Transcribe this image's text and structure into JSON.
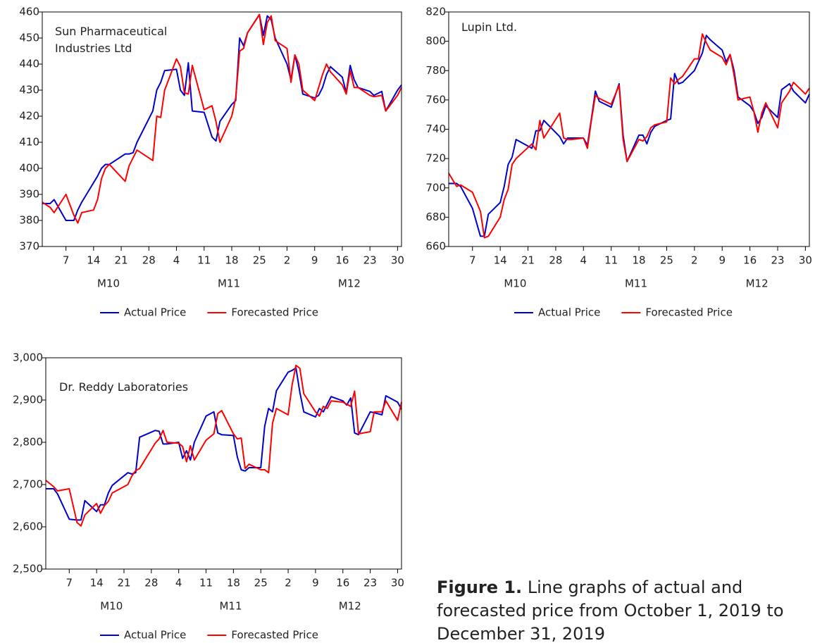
{
  "chart_data": [
    {
      "type": "line",
      "title": "Sun Pharmaceutical Industries Ltd",
      "x": [
        1,
        3,
        4,
        7,
        9,
        10,
        11,
        14,
        15,
        16,
        17,
        18,
        22,
        23,
        24,
        25,
        29,
        30,
        31,
        32,
        35,
        36,
        37,
        38,
        39,
        42,
        44,
        45,
        46,
        49,
        50,
        51,
        52,
        53,
        56,
        57,
        58,
        59,
        60,
        63,
        64,
        65,
        66,
        67,
        70,
        71,
        72,
        73,
        74,
        77,
        78,
        79,
        80,
        81,
        84,
        85,
        87,
        88,
        91,
        92
      ],
      "xlim": [
        1,
        92
      ],
      "xticks": [
        {
          "value": 7,
          "label": "7"
        },
        {
          "value": 14,
          "label": "14"
        },
        {
          "value": 21,
          "label": "21"
        },
        {
          "value": 28,
          "label": "28"
        },
        {
          "value": 35,
          "label": "4"
        },
        {
          "value": 42,
          "label": "11"
        },
        {
          "value": 49,
          "label": "18"
        },
        {
          "value": 56,
          "label": "25"
        },
        {
          "value": 63,
          "label": "2"
        },
        {
          "value": 70,
          "label": "9"
        },
        {
          "value": 77,
          "label": "16"
        },
        {
          "value": 84,
          "label": "23"
        },
        {
          "value": 91,
          "label": "30"
        }
      ],
      "x_groups": [
        {
          "label": "M10",
          "range": [
            1,
            31
          ]
        },
        {
          "label": "M11",
          "range": [
            32,
            61
          ]
        },
        {
          "label": "M12",
          "range": [
            62,
            92
          ]
        }
      ],
      "ylim": [
        370,
        460
      ],
      "yticks": [
        370,
        380,
        390,
        400,
        410,
        420,
        430,
        440,
        450,
        460
      ],
      "series": [
        {
          "name": "Actual Price",
          "color": "#0000cc",
          "values": [
            386.5,
            386.5,
            388,
            380,
            380,
            384,
            387,
            394.5,
            397,
            400,
            401.5,
            401.5,
            405.5,
            405.5,
            406,
            410,
            422,
            430,
            433,
            437.5,
            438,
            430,
            428,
            440.5,
            422,
            421.5,
            412,
            410.5,
            418,
            424.5,
            426,
            450,
            447,
            452,
            459,
            451,
            458.5,
            457,
            450,
            440,
            434,
            443.5,
            437,
            428.5,
            427,
            428,
            431,
            436,
            439,
            435,
            429,
            439.5,
            434,
            431,
            429.5,
            428,
            429.5,
            422,
            430,
            432
          ]
        },
        {
          "name": "Forecasted Price",
          "color": "#ff0000",
          "values": [
            387,
            385,
            383,
            390,
            382,
            379,
            383,
            384,
            388,
            396,
            400,
            401.5,
            395,
            401,
            404,
            407,
            403,
            420,
            419.5,
            430,
            442,
            439,
            429,
            428.5,
            439.5,
            422.5,
            424,
            418,
            410,
            420,
            427,
            445,
            446,
            452,
            459,
            447.5,
            456,
            458.5,
            449,
            446,
            433,
            443.5,
            440,
            430,
            426,
            431,
            436,
            440,
            437,
            432,
            428.5,
            437.5,
            431,
            431,
            428,
            427.5,
            428,
            422,
            428,
            431
          ]
        }
      ]
    },
    {
      "type": "line",
      "title": "Lupin Ltd.",
      "x": [
        1,
        3,
        4,
        7,
        9,
        10,
        11,
        14,
        15,
        16,
        17,
        18,
        22,
        23,
        24,
        25,
        29,
        30,
        31,
        32,
        35,
        36,
        37,
        38,
        39,
        42,
        44,
        45,
        46,
        49,
        50,
        51,
        52,
        53,
        56,
        57,
        58,
        59,
        60,
        63,
        64,
        65,
        66,
        67,
        70,
        71,
        72,
        73,
        74,
        77,
        78,
        79,
        80,
        81,
        84,
        85,
        87,
        88,
        91,
        92
      ],
      "xlim": [
        1,
        92
      ],
      "xticks": [
        {
          "value": 7,
          "label": "7"
        },
        {
          "value": 14,
          "label": "14"
        },
        {
          "value": 21,
          "label": "21"
        },
        {
          "value": 28,
          "label": "28"
        },
        {
          "value": 35,
          "label": "4"
        },
        {
          "value": 42,
          "label": "11"
        },
        {
          "value": 49,
          "label": "18"
        },
        {
          "value": 56,
          "label": "25"
        },
        {
          "value": 63,
          "label": "2"
        },
        {
          "value": 70,
          "label": "9"
        },
        {
          "value": 77,
          "label": "16"
        },
        {
          "value": 84,
          "label": "23"
        },
        {
          "value": 91,
          "label": "30"
        }
      ],
      "x_groups": [
        {
          "label": "M10",
          "range": [
            1,
            31
          ]
        },
        {
          "label": "M11",
          "range": [
            32,
            61
          ]
        },
        {
          "label": "M12",
          "range": [
            62,
            92
          ]
        }
      ],
      "ylim": [
        660,
        820
      ],
      "yticks": [
        660,
        680,
        700,
        720,
        740,
        760,
        780,
        800,
        820
      ],
      "series": [
        {
          "name": "Actual Price",
          "color": "#0000cc",
          "values": [
            703,
            703,
            701,
            686,
            667,
            667,
            682,
            690,
            701,
            716,
            721,
            733,
            727,
            739,
            739,
            746,
            735,
            730,
            734,
            734,
            734,
            729,
            747,
            766,
            759,
            755,
            771,
            736,
            718,
            736,
            736,
            730,
            738,
            742,
            746,
            747,
            778,
            771,
            772,
            780,
            786,
            792,
            804,
            801,
            794,
            786,
            791,
            780,
            762,
            756,
            752,
            744,
            748,
            756,
            748,
            767,
            771,
            766,
            758,
            764
          ]
        },
        {
          "name": "Forecasted Price",
          "color": "#ff0000",
          "values": [
            710,
            701,
            702,
            697,
            684,
            666,
            667,
            680,
            692,
            699,
            716,
            720,
            730,
            726,
            746,
            734,
            751,
            734,
            733,
            733,
            734,
            727,
            746,
            763,
            761,
            757,
            770,
            733,
            718,
            733,
            732,
            735,
            741,
            743,
            745,
            775,
            771,
            774,
            776,
            788,
            788,
            805,
            799,
            794,
            789,
            784,
            791,
            777,
            760,
            762,
            752,
            738,
            751,
            758,
            741,
            758,
            766,
            772,
            764,
            768
          ]
        }
      ]
    },
    {
      "type": "line",
      "title": "Dr. Reddy Laboratories",
      "x": [
        1,
        3,
        4,
        7,
        9,
        10,
        11,
        14,
        15,
        16,
        17,
        18,
        22,
        23,
        24,
        25,
        29,
        30,
        31,
        32,
        35,
        36,
        37,
        38,
        39,
        42,
        44,
        45,
        46,
        49,
        50,
        51,
        52,
        53,
        56,
        57,
        58,
        59,
        60,
        63,
        64,
        65,
        66,
        67,
        70,
        71,
        72,
        73,
        74,
        77,
        78,
        79,
        80,
        81,
        84,
        85,
        87,
        88,
        91,
        92
      ],
      "xlim": [
        1,
        92
      ],
      "xticks": [
        {
          "value": 7,
          "label": "7"
        },
        {
          "value": 14,
          "label": "14"
        },
        {
          "value": 21,
          "label": "21"
        },
        {
          "value": 28,
          "label": "28"
        },
        {
          "value": 35,
          "label": "4"
        },
        {
          "value": 42,
          "label": "11"
        },
        {
          "value": 49,
          "label": "18"
        },
        {
          "value": 56,
          "label": "25"
        },
        {
          "value": 63,
          "label": "2"
        },
        {
          "value": 70,
          "label": "9"
        },
        {
          "value": 77,
          "label": "16"
        },
        {
          "value": 84,
          "label": "23"
        },
        {
          "value": 91,
          "label": "30"
        }
      ],
      "x_groups": [
        {
          "label": "M10",
          "range": [
            1,
            31
          ]
        },
        {
          "label": "M11",
          "range": [
            32,
            61
          ]
        },
        {
          "label": "M12",
          "range": [
            62,
            92
          ]
        }
      ],
      "ylim": [
        2500,
        3000
      ],
      "yticks": [
        {
          "value": 2500,
          "label": "2,500"
        },
        {
          "value": 2600,
          "label": "2,600"
        },
        {
          "value": 2700,
          "label": "2,700"
        },
        {
          "value": 2800,
          "label": "2,800"
        },
        {
          "value": 2900,
          "label": "2,900"
        },
        {
          "value": 3000,
          "label": "3,000"
        }
      ],
      "series": [
        {
          "name": "Actual Price",
          "color": "#0000cc",
          "values": [
            2690,
            2690,
            2678,
            2618,
            2616,
            2616,
            2662,
            2636,
            2652,
            2652,
            2680,
            2698,
            2728,
            2725,
            2728,
            2812,
            2828,
            2826,
            2796,
            2796,
            2800,
            2762,
            2780,
            2758,
            2800,
            2862,
            2872,
            2822,
            2818,
            2816,
            2765,
            2735,
            2732,
            2740,
            2740,
            2838,
            2880,
            2872,
            2922,
            2966,
            2970,
            2976,
            2918,
            2872,
            2860,
            2880,
            2872,
            2890,
            2908,
            2898,
            2888,
            2905,
            2822,
            2818,
            2872,
            2870,
            2865,
            2910,
            2895,
            2878
          ]
        },
        {
          "name": "Forecasted Price",
          "color": "#ff0000",
          "values": [
            2710,
            2695,
            2685,
            2690,
            2610,
            2602,
            2628,
            2655,
            2632,
            2650,
            2660,
            2680,
            2700,
            2720,
            2733,
            2738,
            2798,
            2808,
            2828,
            2800,
            2798,
            2790,
            2754,
            2792,
            2758,
            2805,
            2820,
            2868,
            2875,
            2820,
            2808,
            2810,
            2738,
            2748,
            2735,
            2735,
            2728,
            2845,
            2880,
            2865,
            2935,
            2982,
            2975,
            2915,
            2872,
            2862,
            2885,
            2880,
            2898,
            2895,
            2890,
            2885,
            2921,
            2820,
            2825,
            2872,
            2872,
            2898,
            2852,
            2895
          ]
        }
      ]
    }
  ],
  "caption": {
    "label": "Figure 1.",
    "text": "Line graphs of actual and forecasted price from October 1, 2019 to December 31, 2019"
  }
}
